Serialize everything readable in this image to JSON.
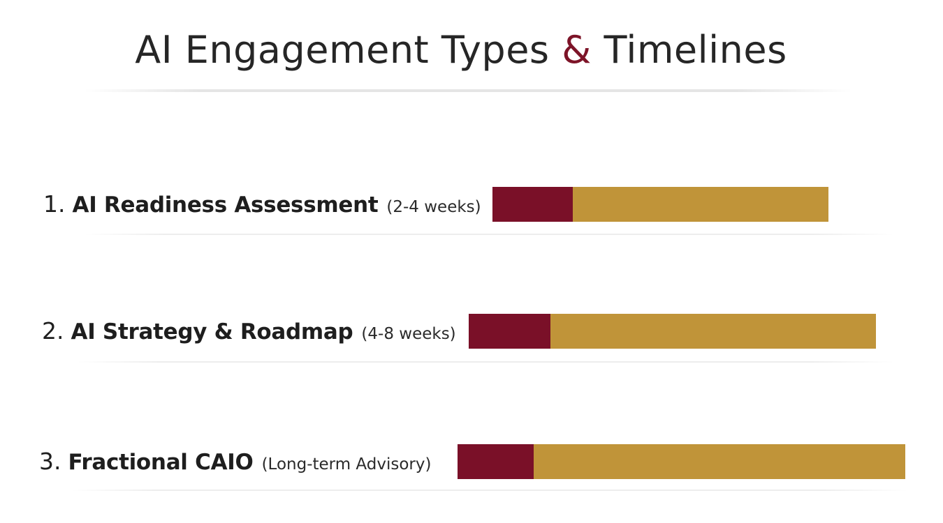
{
  "title": {
    "before": "AI Engagement Types ",
    "amp": "&",
    "after": " Timelines"
  },
  "colors": {
    "title_accent": "#7d1428",
    "bar_primary": "#7a1028",
    "bar_secondary": "#c09439"
  },
  "chart_data": {
    "type": "bar",
    "orientation": "horizontal",
    "stacked": true,
    "title": "AI Engagement Types & Timelines",
    "categories": [
      "1. AI Readiness Assessment (2-4 weeks)",
      "2. AI Strategy & Roadmap (4-8 weeks)",
      "3. Fractional CAIO (Long-term Advisory)"
    ],
    "legend": "none",
    "grid": false,
    "items": [
      {
        "number": "1.",
        "name": "AI Readiness Assessment",
        "duration": "(2-4 weeks)",
        "red_fraction": 0.24
      },
      {
        "number": "2.",
        "name": "AI Strategy & Roadmap",
        "duration": "(4-8 weeks)",
        "red_fraction": 0.2
      },
      {
        "number": "3.",
        "name": "Fractional CAIO",
        "duration": "(Long-term Advisory)",
        "red_fraction": 0.17
      }
    ]
  }
}
